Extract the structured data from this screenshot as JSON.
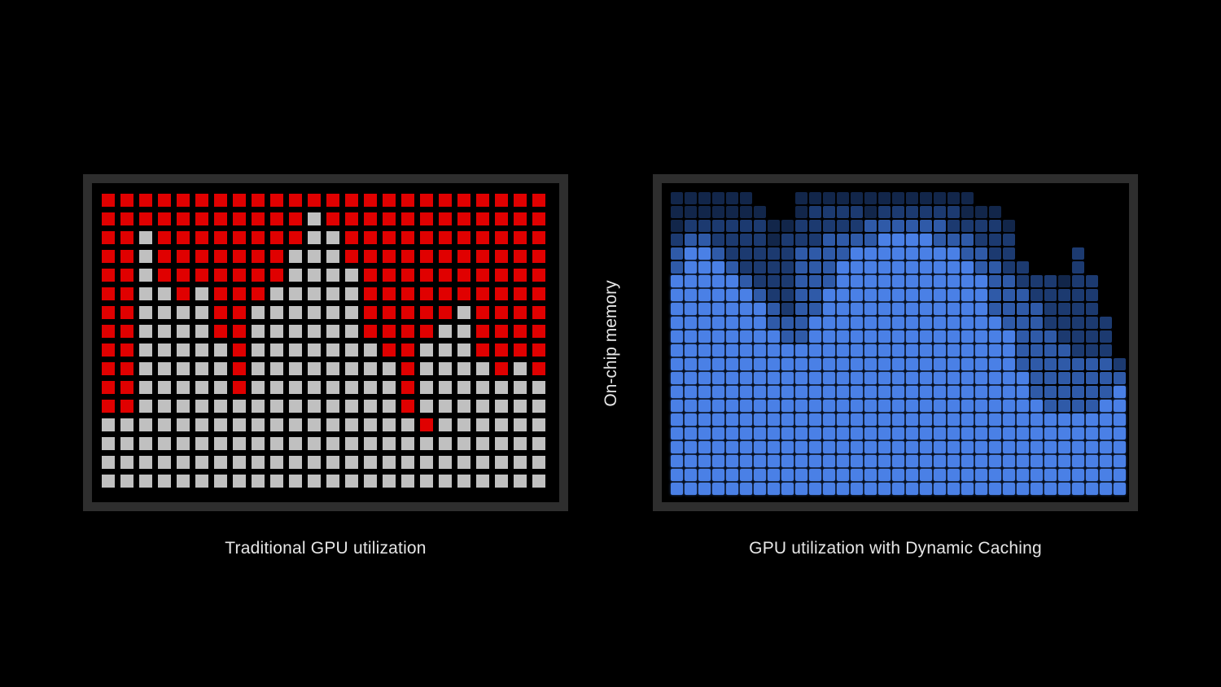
{
  "labels": {
    "left_caption": "Traditional GPU utilization",
    "right_caption": "GPU utilization with Dynamic Caching",
    "center_label": "On-chip memory"
  },
  "colors": {
    "background": "#000000",
    "frame": "#2e2e2e",
    "left_used": "#e00000",
    "left_free": "#c0c0c0",
    "right_full": "#4a80e6",
    "right_mid": "#2f5aa8",
    "right_dim": "#1c3a70",
    "right_faint": "#12264a"
  },
  "left_grid": {
    "legend": {
      "R": "allocated",
      "G": "unused"
    },
    "rows": [
      "RRRRRRRRRRRRRRRRRRRRRRRR",
      "RRRRRRRRRRRGRRRRRRRRRRRR",
      "RRGRRRRRRRRGGRRRRRRRRRRR",
      "RRGRRRRRRRGGGRRRRRRRRRRR",
      "RRGRRRRRRRGGGGRRRRRRRRRR",
      "RRGGRGRRRGGGGGRRRRRRRRRR",
      "RRGGGGRRGGGGGGRRRRRGRRRR",
      "RRGGGGRRGGGGGGRRRRGGRRRR",
      "RRGGGGGRGGGGGGGRRGGGRRRR",
      "RRGGGGGRGGGGGGGGRGGGGRGR",
      "RRGGGGGRGGGGGGGGRGGGGGGG",
      "RRGGGGGGGGGGGGGGRGGGGGGG",
      "GGGGGGGGGGGGGGGGGRGGGGGG",
      "GGGGGGGGGGGGGGGGGGGGGGGG",
      "GGGGGGGGGGGGGGGGGGGGGGGG",
      "GGGGGGGGGGGGGGGGGGGGGGGG"
    ]
  },
  "right_grid": {
    "legend": {
      "4": "full",
      "3": "medium",
      "2": "dim",
      "1": "faint",
      "0": "empty"
    },
    "rows": [
      "111111000111111111111100000000000",
      "111111100122221222222111000000000",
      "122222211222223333332222100000000",
      "233222212223333444433322200000000",
      "344322222333344444444332200002000",
      "344432222333444444444433220002000",
      "444443222333444444444443322212200",
      "444444322334444444444443332222200",
      "444444432334444444444443333222200",
      "444444433344444444444444333222220",
      "444444443344444444444444433322220",
      "444444444444444444444444433332220",
      "444444444444444444444444433333332",
      "444444444444444444444444443333333",
      "444444444444444444444444443333334",
      "444444444444444444444444444333344",
      "444444444444444444444444444444444",
      "444444444444444444444444444444444",
      "444444444444444444444444444444444",
      "444444444444444444444444444444444",
      "444444444444444444444444444444444",
      "444444444444444444444444444444444"
    ]
  }
}
